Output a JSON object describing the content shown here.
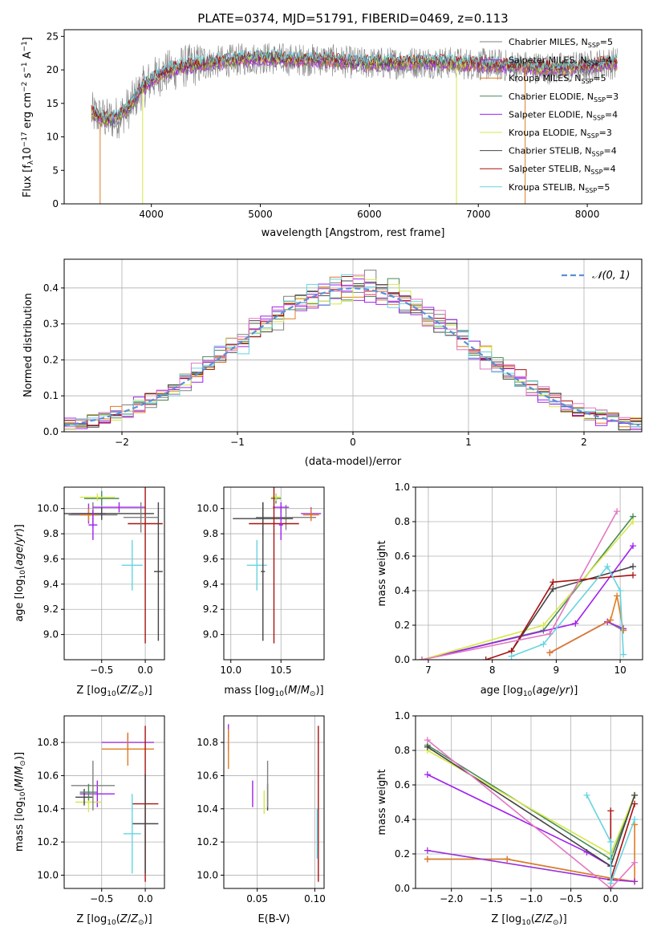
{
  "figure_title": "PLATE=0374, MJD=51791, FIBERID=0469, z=0.113",
  "series_colors": {
    "Chabrier MILES": "#808080",
    "Salpeter MILES": "#9b30d9",
    "Kroupa MILES": "#e07b22",
    "Chabrier ELODIE": "#4a8a55",
    "Salpeter ELODIE": "#a020f0",
    "Kroupa ELODIE": "#d4e84a",
    "Chabrier STELIB": "#444444",
    "Salpeter STELIB": "#aa1111",
    "Kroupa STELIB": "#66d4e0"
  },
  "chart_data": [
    {
      "type": "line",
      "title": "PLATE=0374, MJD=51791, FIBERID=0469, z=0.113",
      "xlabel": "wavelength [Angstrom, rest frame]",
      "ylabel": "Flux [fλ10⁻¹⁷ erg cm⁻² s⁻¹ A⁻¹]",
      "xlim": [
        3200,
        8500
      ],
      "ylim": [
        0,
        26
      ],
      "xticks": [
        4000,
        5000,
        6000,
        7000,
        8000
      ],
      "yticks": [
        0,
        5,
        10,
        15,
        20,
        25
      ],
      "grid": false,
      "legend_position": "right",
      "series": [
        {
          "name": "Chabrier MILES, N_SSP=5",
          "label_main": "Chabrier MILES, N",
          "label_sub": "SSP",
          "label_end": "=5",
          "color": "#808080"
        },
        {
          "name": "Salpeter MILES, N_SSP=4",
          "label_main": "Salpeter MILES, N",
          "label_sub": "SSP",
          "label_end": "=4",
          "color": "#9b30d9"
        },
        {
          "name": "Kroupa MILES, N_SSP=5",
          "label_main": "Kroupa MILES, N",
          "label_sub": "SSP",
          "label_end": "=5",
          "color": "#e07b22"
        },
        {
          "name": "Chabrier ELODIE, N_SSP=3",
          "label_main": "Chabrier ELODIE, N",
          "label_sub": "SSP",
          "label_end": "=3",
          "color": "#4a8a55"
        },
        {
          "name": "Salpeter ELODIE, N_SSP=4",
          "label_main": "Salpeter ELODIE, N",
          "label_sub": "SSP",
          "label_end": "=4",
          "color": "#a020f0"
        },
        {
          "name": "Kroupa ELODIE, N_SSP=3",
          "label_main": "Kroupa ELODIE, N",
          "label_sub": "SSP",
          "label_end": "=3",
          "color": "#d4e84a"
        },
        {
          "name": "Chabrier STELIB, N_SSP=4",
          "label_main": "Chabrier STELIB, N",
          "label_sub": "SSP",
          "label_end": "=4",
          "color": "#444444"
        },
        {
          "name": "Salpeter STELIB, N_SSP=4",
          "label_main": "Salpeter STELIB, N",
          "label_sub": "SSP",
          "label_end": "=4",
          "color": "#aa1111"
        },
        {
          "name": "Kroupa STELIB, N_SSP=5",
          "label_main": "Kroupa STELIB, N",
          "label_sub": "SSP",
          "label_end": "=5",
          "color": "#66d4e0"
        }
      ],
      "spectrum_anchors": {
        "x": [
          3450,
          3600,
          3700,
          3800,
          3900,
          4000,
          4100,
          4300,
          4500,
          4800,
          5000,
          5300,
          5600,
          5900,
          6200,
          6500,
          6800,
          7100,
          7400,
          7700,
          8000,
          8200,
          8280
        ],
        "y": [
          13.5,
          12.5,
          13.0,
          14.5,
          17.0,
          18.5,
          19.5,
          20.5,
          21.0,
          21.5,
          21.8,
          21.5,
          21.5,
          21.0,
          21.0,
          21.2,
          21.0,
          20.8,
          20.5,
          20.2,
          20.5,
          21.0,
          21.0
        ]
      }
    },
    {
      "type": "histogram",
      "xlabel": "(data-model)/error",
      "ylabel": "Normed distribution",
      "xlim": [
        -2.5,
        2.5
      ],
      "ylim": [
        0,
        0.48
      ],
      "xticks": [
        -2,
        -1,
        0,
        1,
        2
      ],
      "yticks": [
        0.0,
        0.1,
        0.2,
        0.3,
        0.4
      ],
      "grid": true,
      "legend_position": "top-right",
      "bin_width": 0.1,
      "gaussian": {
        "name": "N(0,1)",
        "label": "𝒩(0, 1)",
        "mu": 0,
        "sigma": 1,
        "color": "#5b8fd6"
      }
    },
    {
      "type": "scatter",
      "xlabel": "Z [log10(Z/Z⊙)]",
      "ylabel": "age [log10(age/yr)]",
      "xlim": [
        -0.93,
        0.22
      ],
      "ylim": [
        8.8,
        10.17
      ],
      "xticks": [
        -0.5,
        0.0
      ],
      "yticks": [
        9.0,
        9.2,
        9.4,
        9.6,
        9.8,
        10.0
      ],
      "grid": true,
      "points": [
        {
          "series": "Chabrier MILES",
          "x": -0.6,
          "y": 9.95,
          "xerr": 0.28,
          "yerr": 0.1
        },
        {
          "series": "Salpeter MILES",
          "x": -0.65,
          "y": 9.96,
          "xerr": 0.2,
          "yerr": 0.08
        },
        {
          "series": "Kroupa MILES",
          "x": -0.65,
          "y": 9.95,
          "xerr": 0.1,
          "yerr": 0.05
        },
        {
          "series": "Chabrier ELODIE",
          "x": -0.5,
          "y": 10.08,
          "xerr": 0.2,
          "yerr": 0.06
        },
        {
          "series": "Salpeter ELODIE",
          "x": -0.3,
          "y": 10.01,
          "xerr": 0.3,
          "yerr": 0.04
        },
        {
          "series": "Kroupa ELODIE",
          "x": -0.55,
          "y": 10.09,
          "xerr": 0.2,
          "yerr": 0.03
        },
        {
          "series": "Chabrier STELIB",
          "x": -0.5,
          "y": 9.96,
          "xerr": 0.6,
          "yerr": 0.05
        },
        {
          "series": "Salpeter STELIB",
          "x": 0.0,
          "y": 9.88,
          "xerr": 0.2,
          "yerr": 0.95
        },
        {
          "series": "Kroupa STELIB",
          "x": -0.15,
          "y": 9.55,
          "xerr": 0.12,
          "yerr": 0.2
        },
        {
          "series": "Chabrier STELIB",
          "x": 0.15,
          "y": 9.5,
          "xerr": 0.05,
          "yerr": 0.55
        },
        {
          "series": "Salpeter ELODIE",
          "x": -0.6,
          "y": 9.87,
          "xerr": 0.05,
          "yerr": 0.12
        },
        {
          "series": "Chabrier MILES",
          "x": -0.05,
          "y": 9.93,
          "xerr": 0.2,
          "yerr": 0.12
        }
      ]
    },
    {
      "type": "scatter",
      "xlabel": "mass [log10(M/M⊙)]",
      "xlim": [
        9.93,
        10.93
      ],
      "ylim": [
        8.8,
        10.17
      ],
      "xticks": [
        10.0,
        10.5
      ],
      "yticks": [
        9.0,
        9.2,
        9.4,
        9.6,
        9.8,
        10.0
      ],
      "grid": true,
      "points": [
        {
          "series": "Chabrier MILES",
          "x": 10.55,
          "y": 9.93,
          "xerr": 0.3,
          "yerr": 0.1
        },
        {
          "series": "Salpeter MILES",
          "x": 10.8,
          "y": 9.96,
          "xerr": 0.1,
          "yerr": 0.05
        },
        {
          "series": "Kroupa MILES",
          "x": 10.8,
          "y": 9.95,
          "xerr": 0.08,
          "yerr": 0.05
        },
        {
          "series": "Chabrier ELODIE",
          "x": 10.45,
          "y": 10.08,
          "xerr": 0.05,
          "yerr": 0.04
        },
        {
          "series": "Salpeter ELODIE",
          "x": 10.5,
          "y": 10.01,
          "xerr": 0.08,
          "yerr": 0.04
        },
        {
          "series": "Kroupa ELODIE",
          "x": 10.45,
          "y": 10.09,
          "xerr": 0.05,
          "yerr": 0.03
        },
        {
          "series": "Chabrier STELIB",
          "x": 10.32,
          "y": 9.92,
          "xerr": 0.3,
          "yerr": 0.13
        },
        {
          "series": "Salpeter STELIB",
          "x": 10.43,
          "y": 9.88,
          "xerr": 0.25,
          "yerr": 0.95
        },
        {
          "series": "Kroupa STELIB",
          "x": 10.26,
          "y": 9.55,
          "xerr": 0.1,
          "yerr": 0.2
        },
        {
          "series": "Chabrier STELIB",
          "x": 10.32,
          "y": 9.5,
          "xerr": 0.02,
          "yerr": 0.55
        },
        {
          "series": "Salpeter ELODIE",
          "x": 10.5,
          "y": 9.87,
          "xerr": 0.02,
          "yerr": 0.12
        }
      ]
    },
    {
      "type": "line",
      "xlabel": "age [log10(age/yr)]",
      "ylabel": "mass weight",
      "xlim": [
        6.8,
        10.35
      ],
      "ylim": [
        0,
        1
      ],
      "xticks": [
        7,
        8,
        9,
        10
      ],
      "yticks": [
        0.0,
        0.2,
        0.4,
        0.6,
        0.8,
        1.0
      ],
      "grid": true,
      "series": [
        {
          "name": "Chabrier MILES",
          "x": [
            8.9,
            9.8,
            10.05
          ],
          "y": [
            0.04,
            0.22,
            0.17
          ]
        },
        {
          "name": "Salpeter MILES",
          "x": [
            8.9,
            9.8,
            10.05
          ],
          "y": [
            0.04,
            0.22,
            0.18
          ]
        },
        {
          "name": "Kroupa MILES",
          "x": [
            8.9,
            9.85,
            9.95,
            10.05
          ],
          "y": [
            0.04,
            0.23,
            0.37,
            0.17
          ]
        },
        {
          "name": "Chabrier ELODIE",
          "x": [
            6.9,
            8.8,
            10.2
          ],
          "y": [
            0.0,
            0.17,
            0.83
          ]
        },
        {
          "name": "Salpeter ELODIE",
          "x": [
            6.9,
            9.3,
            10.2
          ],
          "y": [
            0.0,
            0.21,
            0.66
          ]
        },
        {
          "name": "Kroupa ELODIE",
          "x": [
            6.9,
            8.8,
            10.2
          ],
          "y": [
            0.0,
            0.2,
            0.8
          ]
        },
        {
          "name": "Chabrier STELIB",
          "x": [
            8.3,
            8.95,
            10.2
          ],
          "y": [
            0.05,
            0.41,
            0.54
          ]
        },
        {
          "name": "Salpeter STELIB",
          "x": [
            7.9,
            8.3,
            8.95,
            10.2
          ],
          "y": [
            0.0,
            0.05,
            0.45,
            0.49
          ]
        },
        {
          "name": "Kroupa STELIB",
          "x": [
            8.3,
            8.8,
            9.8,
            10.0,
            10.05
          ],
          "y": [
            0.02,
            0.09,
            0.54,
            0.4,
            0.03
          ]
        },
        {
          "name": "Salpeter ELODIE pink",
          "x": [
            6.9,
            8.9,
            9.95
          ],
          "y": [
            0.0,
            0.15,
            0.86
          ]
        }
      ]
    },
    {
      "type": "scatter",
      "xlabel": "Z [log10(Z/Z⊙)]",
      "ylabel": "mass [log10(M/M⊙)]",
      "xlim": [
        -0.93,
        0.22
      ],
      "ylim": [
        9.92,
        10.96
      ],
      "xticks": [
        -0.5,
        0.0
      ],
      "yticks": [
        10.0,
        10.2,
        10.4,
        10.6,
        10.8
      ],
      "grid": true,
      "points": [
        {
          "series": "Salpeter MILES",
          "x": -0.2,
          "y": 10.8,
          "xerr": 0.3,
          "yerr": 0.05
        },
        {
          "series": "Kroupa MILES",
          "x": -0.2,
          "y": 10.76,
          "xerr": 0.3,
          "yerr": 0.1
        },
        {
          "series": "Salpeter ELODIE",
          "x": -0.55,
          "y": 10.49,
          "xerr": 0.2,
          "yerr": 0.08
        },
        {
          "series": "Kroupa ELODIE",
          "x": -0.65,
          "y": 10.44,
          "xerr": 0.15,
          "yerr": 0.06
        },
        {
          "series": "Chabrier STELIB",
          "x": -0.7,
          "y": 10.47,
          "xerr": 0.1,
          "yerr": 0.05
        },
        {
          "series": "Salpeter STELIB",
          "x": 0.0,
          "y": 10.43,
          "xerr": 0.15,
          "yerr": 0.47
        },
        {
          "series": "Chabrier STELIB",
          "x": 0.0,
          "y": 10.31,
          "xerr": 0.15,
          "yerr": 0.3
        },
        {
          "series": "Kroupa STELIB",
          "x": -0.15,
          "y": 10.25,
          "xerr": 0.1,
          "yerr": 0.24
        },
        {
          "series": "Chabrier MILES",
          "x": -0.6,
          "y": 10.54,
          "xerr": 0.25,
          "yerr": 0.15
        },
        {
          "series": "Chabrier ELODIE",
          "x": -0.65,
          "y": 10.5,
          "xerr": 0.1,
          "yerr": 0.05
        }
      ]
    },
    {
      "type": "scatter",
      "xlabel": "E(B-V)",
      "xlim": [
        0.021,
        0.108
      ],
      "ylim": [
        9.92,
        10.96
      ],
      "xticks": [
        0.05,
        0.1
      ],
      "yticks": [
        10.0,
        10.2,
        10.4,
        10.6,
        10.8
      ],
      "grid": true,
      "points": [
        {
          "series": "Salpeter MILES",
          "x": 0.025,
          "y": 10.83,
          "xerr": 0,
          "yerr": 0.08
        },
        {
          "series": "Kroupa MILES",
          "x": 0.025,
          "y": 10.76,
          "xerr": 0,
          "yerr": 0.12
        },
        {
          "series": "Salpeter ELODIE",
          "x": 0.046,
          "y": 10.49,
          "xerr": 0,
          "yerr": 0.08
        },
        {
          "series": "Kroupa ELODIE",
          "x": 0.056,
          "y": 10.44,
          "xerr": 0,
          "yerr": 0.07
        },
        {
          "series": "Chabrier STELIB",
          "x": 0.059,
          "y": 10.47,
          "xerr": 0,
          "yerr": 0.08
        },
        {
          "series": "Salpeter STELIB",
          "x": 0.103,
          "y": 10.43,
          "xerr": 0,
          "yerr": 0.47
        },
        {
          "series": "Kroupa STELIB",
          "x": 0.102,
          "y": 10.25,
          "xerr": 0,
          "yerr": 0.15
        },
        {
          "series": "Chabrier MILES",
          "x": 0.059,
          "y": 10.55,
          "xerr": 0,
          "yerr": 0.14
        }
      ]
    },
    {
      "type": "line",
      "xlabel": "Z [log10(Z/Z⊙)]",
      "ylabel": "mass weight",
      "xlim": [
        -2.45,
        0.4
      ],
      "ylim": [
        0,
        1
      ],
      "xticks": [
        -2.0,
        -1.5,
        -1.0,
        -0.5,
        0.0
      ],
      "yticks": [
        0.0,
        0.2,
        0.4,
        0.6,
        0.8,
        1.0
      ],
      "grid": true,
      "series": [
        {
          "name": "Chabrier MILES",
          "x": [
            -2.3,
            -1.3,
            0.0,
            0.3
          ],
          "y": [
            0.17,
            0.17,
            0.06,
            0.04
          ]
        },
        {
          "name": "Kroupa MILES",
          "x": [
            -2.3,
            -1.3,
            0.0,
            0.3,
            0.3
          ],
          "y": [
            0.17,
            0.17,
            0.06,
            0.04,
            0.37
          ]
        },
        {
          "name": "Salpeter MILES",
          "x": [
            -2.3,
            0.0,
            0.3
          ],
          "y": [
            0.22,
            0.05,
            0.04
          ]
        },
        {
          "name": "Chabrier ELODIE",
          "x": [
            -2.3,
            0.0,
            0.3
          ],
          "y": [
            0.83,
            0.17,
            0.54
          ]
        },
        {
          "name": "Salpeter ELODIE",
          "x": [
            -2.3,
            -0.3,
            0.0
          ],
          "y": [
            0.66,
            0.21,
            0.13
          ]
        },
        {
          "name": "Kroupa ELODIE",
          "x": [
            -2.3,
            0.0,
            0.3
          ],
          "y": [
            0.8,
            0.2,
            0.54
          ]
        },
        {
          "name": "Chabrier STELIB",
          "x": [
            -2.3,
            0.0,
            0.3
          ],
          "y": [
            0.82,
            0.13,
            0.54
          ]
        },
        {
          "name": "Salpeter STELIB",
          "x": [
            0.0,
            0.0,
            0.0,
            0.3
          ],
          "y": [
            0.45,
            0.0,
            0.05,
            0.49
          ]
        },
        {
          "name": "Kroupa STELIB",
          "x": [
            -0.3,
            0.0,
            0.0,
            0.3
          ],
          "y": [
            0.54,
            0.27,
            0.03,
            0.4
          ]
        },
        {
          "name": "Salpeter ELODIE pink",
          "x": [
            -2.3,
            0.0,
            0.3
          ],
          "y": [
            0.86,
            0.0,
            0.15
          ]
        }
      ]
    }
  ]
}
